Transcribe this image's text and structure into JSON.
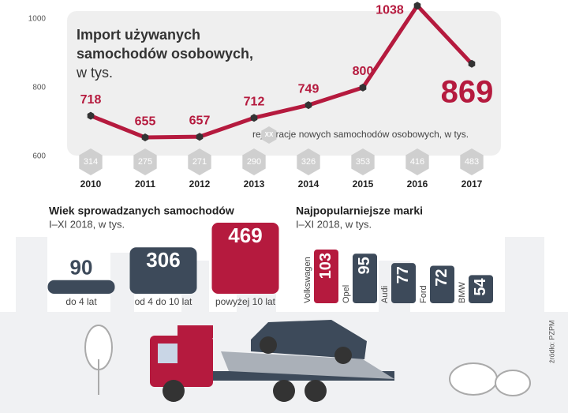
{
  "chart_data": [
    {
      "type": "line",
      "title": "Import używanych samochodów osobowych,",
      "title_unit": "w tys.",
      "categories": [
        "2010",
        "2011",
        "2012",
        "2013",
        "2014",
        "2015",
        "2016",
        "2017"
      ],
      "ylim": [
        600,
        1050
      ],
      "yticks": [
        600,
        800,
        1000
      ],
      "series": [
        {
          "color": "#b51a3e",
          "values": [
            718,
            655,
            657,
            712,
            749,
            800,
            1038,
            869
          ]
        },
        {
          "name": "rejestracje nowych samochodów osobowych, w tys.",
          "legend_sample": "XX",
          "color": "#cfcfcf",
          "values": [
            314,
            275,
            271,
            290,
            326,
            353,
            416,
            483
          ]
        }
      ]
    },
    {
      "type": "bar",
      "title": "Wiek sprowadzanych samochodów",
      "subtitle": "I–XI 2018, w tys.",
      "categories": [
        "do 4 lat",
        "od 4 do 10 lat",
        "powyżej 10 lat"
      ],
      "values": [
        90,
        306,
        469
      ],
      "colors": [
        "#3d4a5a",
        "#3d4a5a",
        "#b51a3e"
      ],
      "ylim": [
        0,
        469
      ]
    },
    {
      "type": "bar",
      "title": "Najpopularniejsze marki",
      "subtitle": "I–XI 2018, w tys.",
      "categories": [
        "Volkswagen",
        "Opel",
        "Audi",
        "Ford",
        "BMW"
      ],
      "values": [
        103,
        95,
        77,
        72,
        54
      ],
      "colors": [
        "#b51a3e",
        "#3d4a5a",
        "#3d4a5a",
        "#3d4a5a",
        "#3d4a5a"
      ],
      "ylim": [
        0,
        103
      ],
      "source": "źródło: PZPM"
    }
  ]
}
